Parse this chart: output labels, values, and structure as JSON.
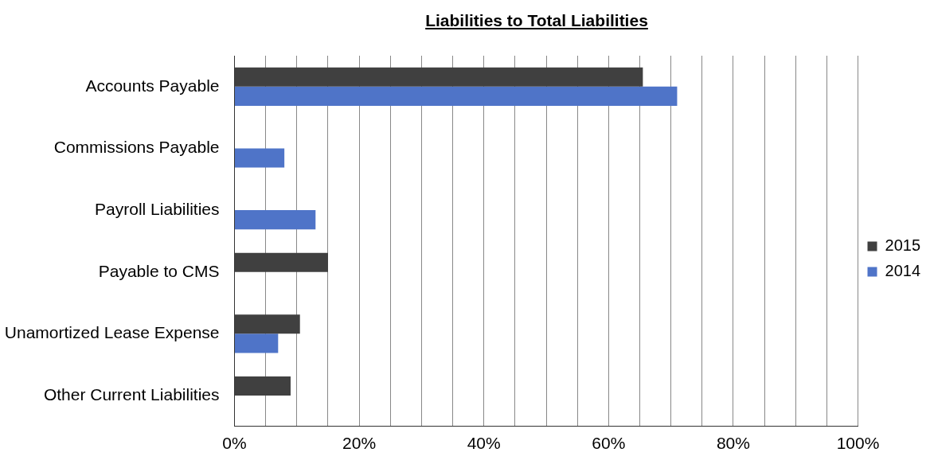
{
  "chart_data": {
    "type": "bar",
    "orientation": "horizontal",
    "title": "Liabilities to Total Liabilities",
    "categories": [
      "Accounts Payable",
      "Commissions Payable",
      "Payroll Liabilities",
      "Payable to CMS",
      "Unamortized Lease Expense",
      "Other Current Liabilities"
    ],
    "series": [
      {
        "name": "2015",
        "color": "#404040",
        "values": [
          65.5,
          null,
          null,
          15,
          10.5,
          9
        ]
      },
      {
        "name": "2014",
        "color": "#4f74c8",
        "values": [
          71,
          8,
          13,
          null,
          7,
          null
        ]
      }
    ],
    "xlim": [
      0,
      100
    ],
    "xticks": [
      {
        "value": 0,
        "label": "0%"
      },
      {
        "value": 5,
        "label": null
      },
      {
        "value": 10,
        "label": null
      },
      {
        "value": 15,
        "label": null
      },
      {
        "value": 20,
        "label": "20%"
      },
      {
        "value": 25,
        "label": null
      },
      {
        "value": 30,
        "label": null
      },
      {
        "value": 35,
        "label": null
      },
      {
        "value": 40,
        "label": "40%"
      },
      {
        "value": 45,
        "label": null
      },
      {
        "value": 50,
        "label": null
      },
      {
        "value": 55,
        "label": null
      },
      {
        "value": 60,
        "label": "60%"
      },
      {
        "value": 65,
        "label": null
      },
      {
        "value": 70,
        "label": null
      },
      {
        "value": 75,
        "label": null
      },
      {
        "value": 80,
        "label": "80%"
      },
      {
        "value": 85,
        "label": null
      },
      {
        "value": 90,
        "label": null
      },
      {
        "value": 95,
        "label": null
      },
      {
        "value": 100,
        "label": "100%"
      }
    ],
    "grid": "x",
    "legend": "right"
  }
}
